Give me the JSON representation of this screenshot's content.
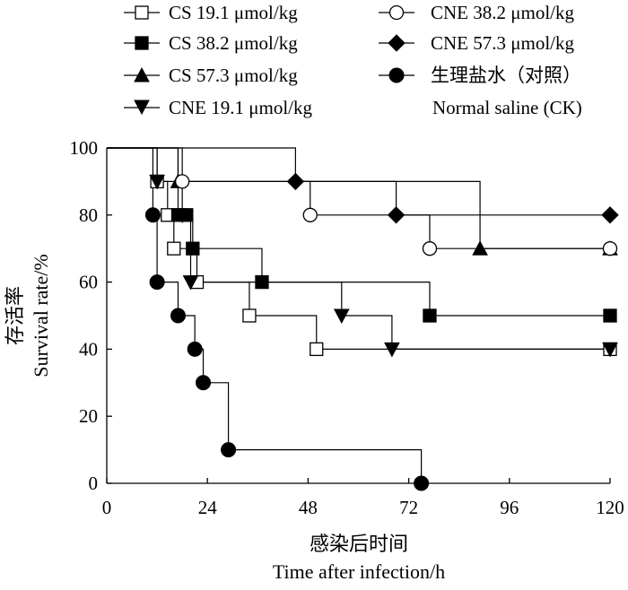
{
  "chart_data": {
    "type": "line",
    "subtype": "step (Kaplan-Meier survival curve)",
    "xlabel_cn": "感染后时间",
    "xlabel": "Time after infection/h",
    "ylabel_cn": "存活率",
    "ylabel": "Survival rate/%",
    "xlim": [
      0,
      120
    ],
    "ylim": [
      0,
      100
    ],
    "xticks": [
      0,
      24,
      48,
      72,
      96,
      120
    ],
    "yticks": [
      0,
      20,
      40,
      60,
      80,
      100
    ],
    "grid": false,
    "legend_position": "top",
    "series": [
      {
        "name": "CS 19.1 μmol/kg",
        "marker": "square-open",
        "x": [
          12,
          14.5,
          16,
          21.5,
          34,
          50,
          120
        ],
        "y": [
          90,
          80,
          70,
          60,
          50,
          40,
          40
        ]
      },
      {
        "name": "CS 38.2 μmol/kg",
        "marker": "square-filled",
        "x": [
          17,
          19,
          20.5,
          37,
          77,
          120
        ],
        "y": [
          80,
          80,
          70,
          60,
          50,
          50
        ]
      },
      {
        "name": "CS 57.3 μmol/kg",
        "marker": "triangle-up-filled",
        "x": [
          17,
          89,
          120
        ],
        "y": [
          90,
          70,
          70
        ]
      },
      {
        "name": "CNE 19.1 μmol/kg",
        "marker": "triangle-down-filled",
        "x": [
          12,
          18,
          20,
          56,
          68,
          120
        ],
        "y": [
          90,
          80,
          60,
          50,
          40,
          40
        ]
      },
      {
        "name": "CNE 38.2 μmol/kg",
        "marker": "circle-open",
        "x": [
          18,
          48.5,
          77,
          120
        ],
        "y": [
          90,
          80,
          70,
          70
        ]
      },
      {
        "name": "CNE 57.3 μmol/kg",
        "marker": "diamond-filled",
        "x": [
          45,
          69,
          120
        ],
        "y": [
          90,
          80,
          80
        ]
      },
      {
        "name": "生理盐水（对照）Normal saline (CK)",
        "name_cn": "生理盐水（对照）",
        "name_en": "Normal saline (CK)",
        "marker": "circle-filled",
        "x": [
          11,
          12,
          17,
          21,
          23,
          29,
          75
        ],
        "y": [
          80,
          60,
          50,
          40,
          30,
          10,
          0
        ]
      }
    ]
  }
}
